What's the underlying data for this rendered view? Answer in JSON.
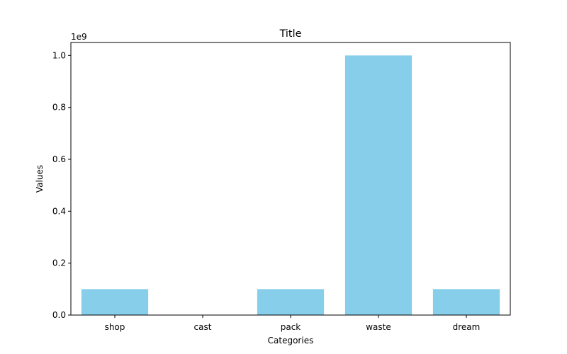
{
  "chart_data": {
    "type": "bar",
    "title": "Title",
    "xlabel": "Categories",
    "ylabel": "Values",
    "y_offset_label": "1e9",
    "categories": [
      "shop",
      "cast",
      "pack",
      "waste",
      "dream"
    ],
    "values": [
      100000000,
      0,
      100000000,
      1000000000,
      100000000
    ],
    "ylim": [
      0,
      1050000000
    ],
    "y_ticks": [
      {
        "value": 0,
        "label": "0.0"
      },
      {
        "value": 200000000,
        "label": "0.2"
      },
      {
        "value": 400000000,
        "label": "0.4"
      },
      {
        "value": 600000000,
        "label": "0.6"
      },
      {
        "value": 800000000,
        "label": "0.8"
      },
      {
        "value": 1000000000,
        "label": "1.0"
      }
    ],
    "bar_color": "#87CEEB",
    "grid": false,
    "legend": "none"
  }
}
